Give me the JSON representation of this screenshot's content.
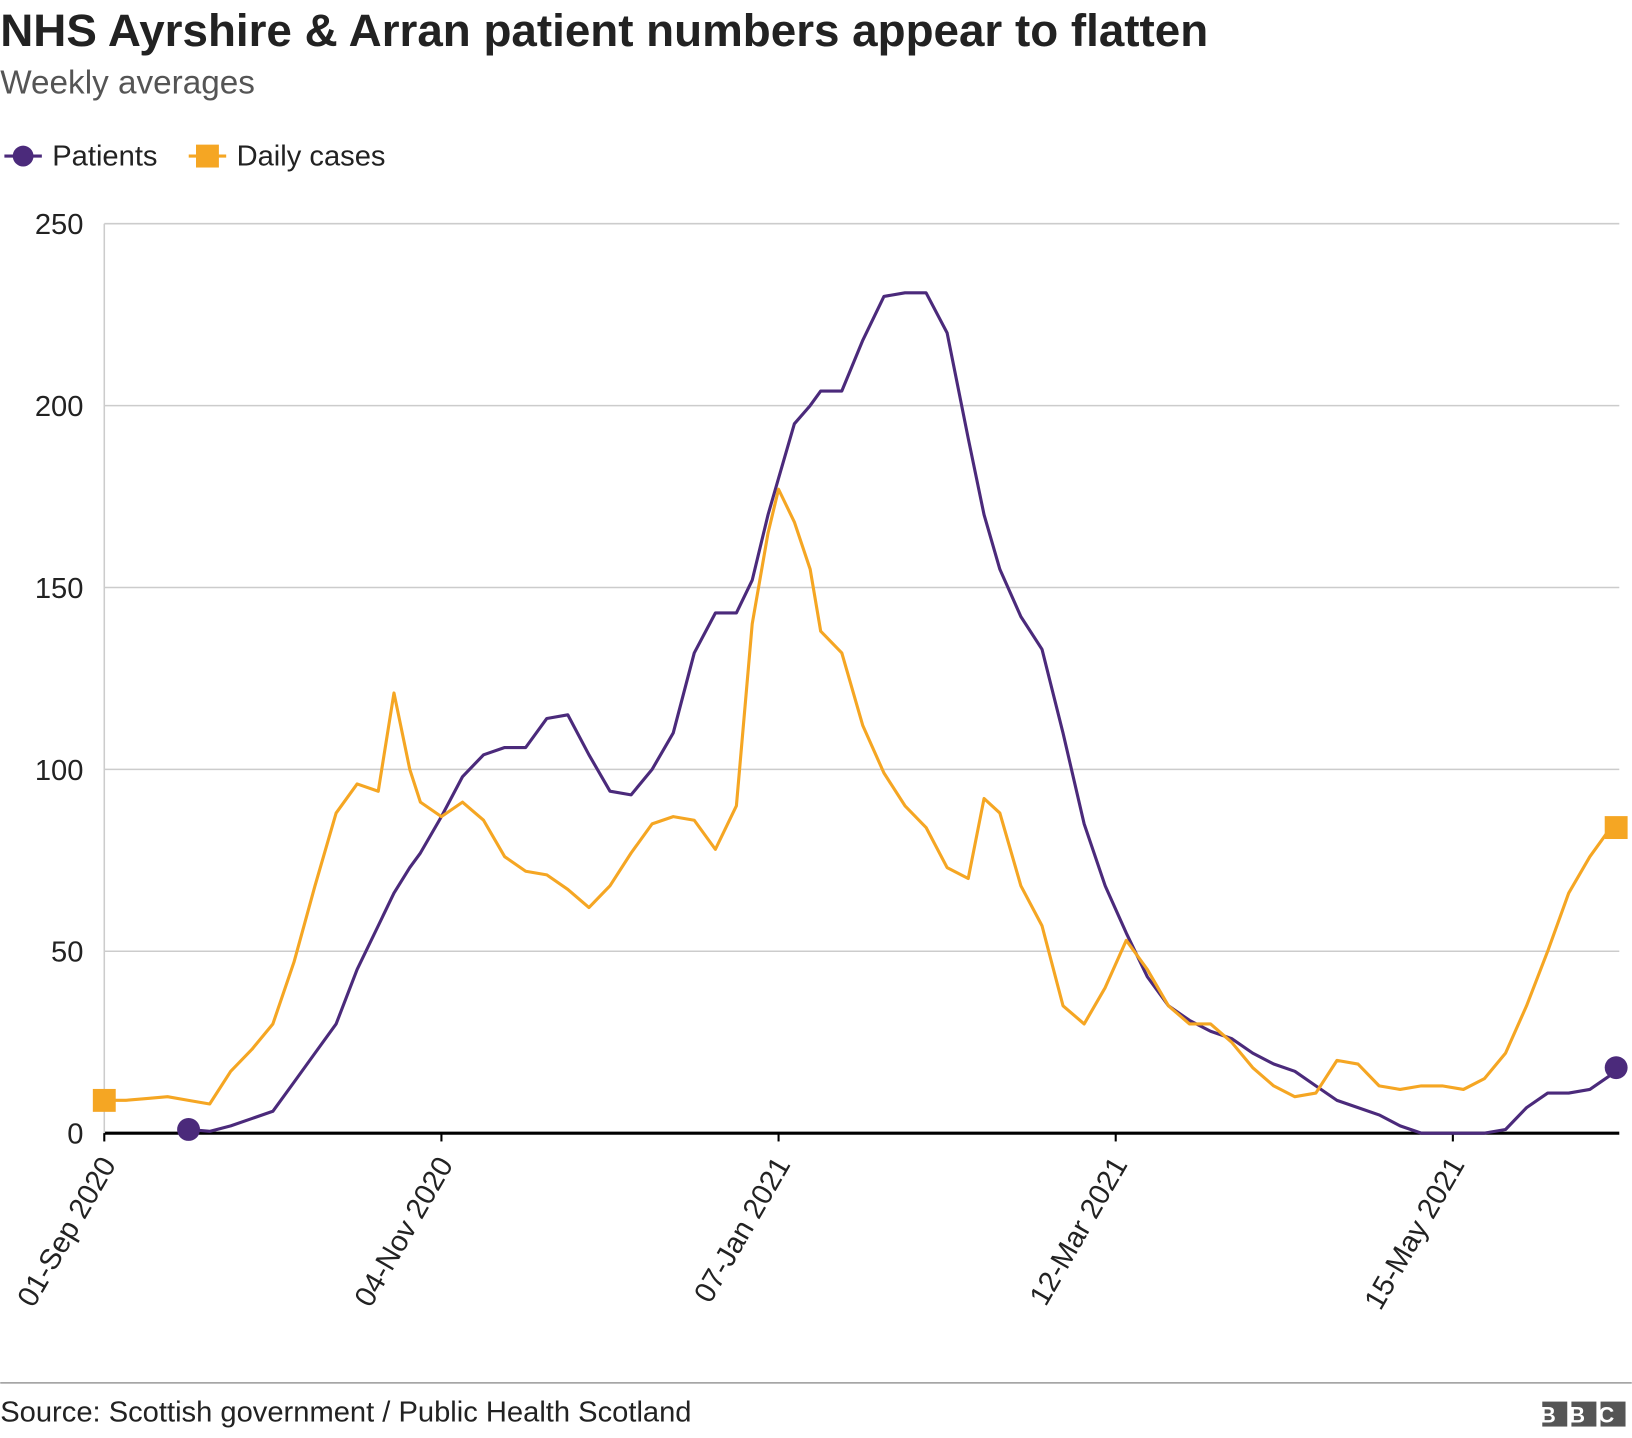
{
  "chart_data": {
    "type": "line",
    "title": "NHS Ayrshire & Arran patient numbers appear to flatten",
    "subtitle": "Weekly averages",
    "source": "Source: Scottish government / Public Health Scotland",
    "logo": "BBC",
    "x": [
      "2020-09-01",
      "2020-09-05",
      "2020-09-09",
      "2020-09-13",
      "2020-09-17",
      "2020-09-21",
      "2020-09-25",
      "2020-09-29",
      "2020-10-03",
      "2020-10-07",
      "2020-10-11",
      "2020-10-15",
      "2020-10-19",
      "2020-10-23",
      "2020-10-26",
      "2020-10-29",
      "2020-10-31",
      "2020-11-04",
      "2020-11-08",
      "2020-11-12",
      "2020-11-16",
      "2020-11-20",
      "2020-11-24",
      "2020-11-28",
      "2020-12-02",
      "2020-12-06",
      "2020-12-10",
      "2020-12-14",
      "2020-12-18",
      "2020-12-22",
      "2020-12-26",
      "2020-12-30",
      "2021-01-02",
      "2021-01-05",
      "2021-01-07",
      "2021-01-10",
      "2021-01-13",
      "2021-01-15",
      "2021-01-19",
      "2021-01-23",
      "2021-01-27",
      "2021-01-31",
      "2021-02-04",
      "2021-02-08",
      "2021-02-12",
      "2021-02-15",
      "2021-02-18",
      "2021-02-22",
      "2021-02-26",
      "2021-03-02",
      "2021-03-06",
      "2021-03-10",
      "2021-03-14",
      "2021-03-18",
      "2021-03-22",
      "2021-03-26",
      "2021-03-30",
      "2021-04-03",
      "2021-04-07",
      "2021-04-11",
      "2021-04-15",
      "2021-04-19",
      "2021-04-23",
      "2021-04-27",
      "2021-05-01",
      "2021-05-05",
      "2021-05-09",
      "2021-05-13",
      "2021-05-17",
      "2021-05-21",
      "2021-05-25",
      "2021-05-29",
      "2021-06-02",
      "2021-06-06",
      "2021-06-10",
      "2021-06-14",
      "2021-06-15"
    ],
    "series": [
      {
        "name": "Patients",
        "color": "#4b2a7b",
        "marker": "circle",
        "values": [
          null,
          null,
          null,
          null,
          1,
          0.5,
          2,
          4,
          6,
          14,
          22,
          30,
          45,
          57,
          66,
          73,
          77,
          87,
          98,
          104,
          106,
          106,
          114,
          115,
          104,
          94,
          93,
          100,
          110,
          132,
          143,
          143,
          152,
          170,
          180,
          195,
          200,
          204,
          204,
          218,
          230,
          231,
          231,
          220,
          191,
          170,
          155,
          142,
          133,
          110,
          85,
          68,
          55,
          43,
          35,
          31,
          28,
          26,
          22,
          19,
          17,
          13,
          9,
          7,
          5,
          2,
          0,
          0,
          0,
          0,
          1,
          7,
          11,
          11,
          12,
          16,
          18
        ]
      },
      {
        "name": "Daily cases",
        "color": "#f5a623",
        "marker": "square",
        "values": [
          9,
          9,
          9.5,
          10,
          9,
          8,
          17,
          23,
          30,
          47,
          68,
          88,
          96,
          94,
          121,
          100,
          91,
          87,
          91,
          86,
          76,
          72,
          71,
          67,
          62,
          68,
          77,
          85,
          87,
          86,
          78,
          90,
          140,
          165,
          177,
          168,
          155,
          138,
          132,
          112,
          99,
          90,
          84,
          73,
          70,
          92,
          88,
          68,
          57,
          35,
          30,
          40,
          53,
          45,
          35,
          30,
          30,
          25,
          18,
          13,
          10,
          11,
          20,
          19,
          13,
          12,
          13,
          13,
          12,
          15,
          22,
          35,
          50,
          66,
          76,
          84,
          84
        ]
      }
    ],
    "xticks": [
      {
        "value": "2020-09-01",
        "label": "01-Sep 2020"
      },
      {
        "value": "2020-11-04",
        "label": "04-Nov 2020"
      },
      {
        "value": "2021-01-07",
        "label": "07-Jan 2021"
      },
      {
        "value": "2021-03-12",
        "label": "12-Mar 2021"
      },
      {
        "value": "2021-05-15",
        "label": "15-May 2021"
      }
    ],
    "xlim": [
      "2020-09-01",
      "2021-06-15"
    ],
    "ylim": [
      0,
      250
    ],
    "yticks": [
      0,
      50,
      100,
      150,
      200,
      250
    ],
    "grid": true,
    "legend": "top-left"
  }
}
